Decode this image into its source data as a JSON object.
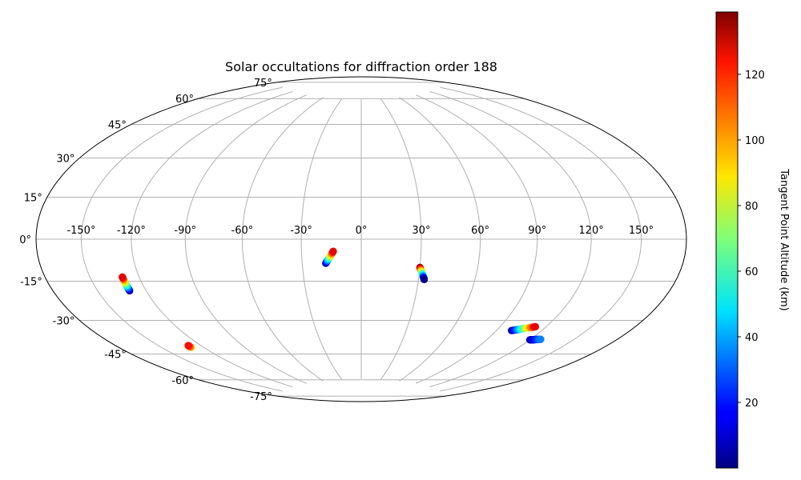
{
  "chart_data": {
    "type": "scatter",
    "projection": "hammer",
    "title": "Solar occultations for diffraction order 188",
    "longitude_ticks": [
      "-150°",
      "-120°",
      "-90°",
      "-60°",
      "-30°",
      "0°",
      "30°",
      "60°",
      "90°",
      "120°",
      "150°"
    ],
    "latitude_ticks": [
      "75°",
      "60°",
      "45°",
      "30°",
      "15°",
      "0°",
      "-15°",
      "-30°",
      "-45°",
      "-60°",
      "-75°"
    ],
    "grid": true,
    "colorbar": {
      "label": "Tangent Point Altitude (km)",
      "colormap": "jet",
      "range": [
        0,
        139
      ],
      "ticks": [
        "20",
        "40",
        "60",
        "80",
        "100",
        "120"
      ]
    },
    "tracks": [
      {
        "start": {
          "lon": -130,
          "lat": -22,
          "alt": 2
        },
        "end": {
          "lon": -130,
          "lat": -16,
          "alt": 125
        }
      },
      {
        "start": {
          "lon": -129,
          "lat": -49,
          "alt": 90
        },
        "end": {
          "lon": -129,
          "lat": -48,
          "alt": 120
        }
      },
      {
        "start": {
          "lon": -18,
          "lat": -12,
          "alt": 2
        },
        "end": {
          "lon": -14,
          "lat": -6,
          "alt": 125
        }
      },
      {
        "start": {
          "lon": 30,
          "lat": -14,
          "alt": 139
        },
        "end": {
          "lon": 33,
          "lat": -20,
          "alt": 2
        }
      },
      {
        "start": {
          "lon": 100,
          "lat": -43,
          "alt": 2
        },
        "end": {
          "lon": 113,
          "lat": -40,
          "alt": 125
        }
      },
      {
        "start": {
          "lon": 120,
          "lat": -46,
          "alt": 2
        },
        "end": {
          "lon": 127,
          "lat": -45,
          "alt": 35
        }
      }
    ]
  }
}
